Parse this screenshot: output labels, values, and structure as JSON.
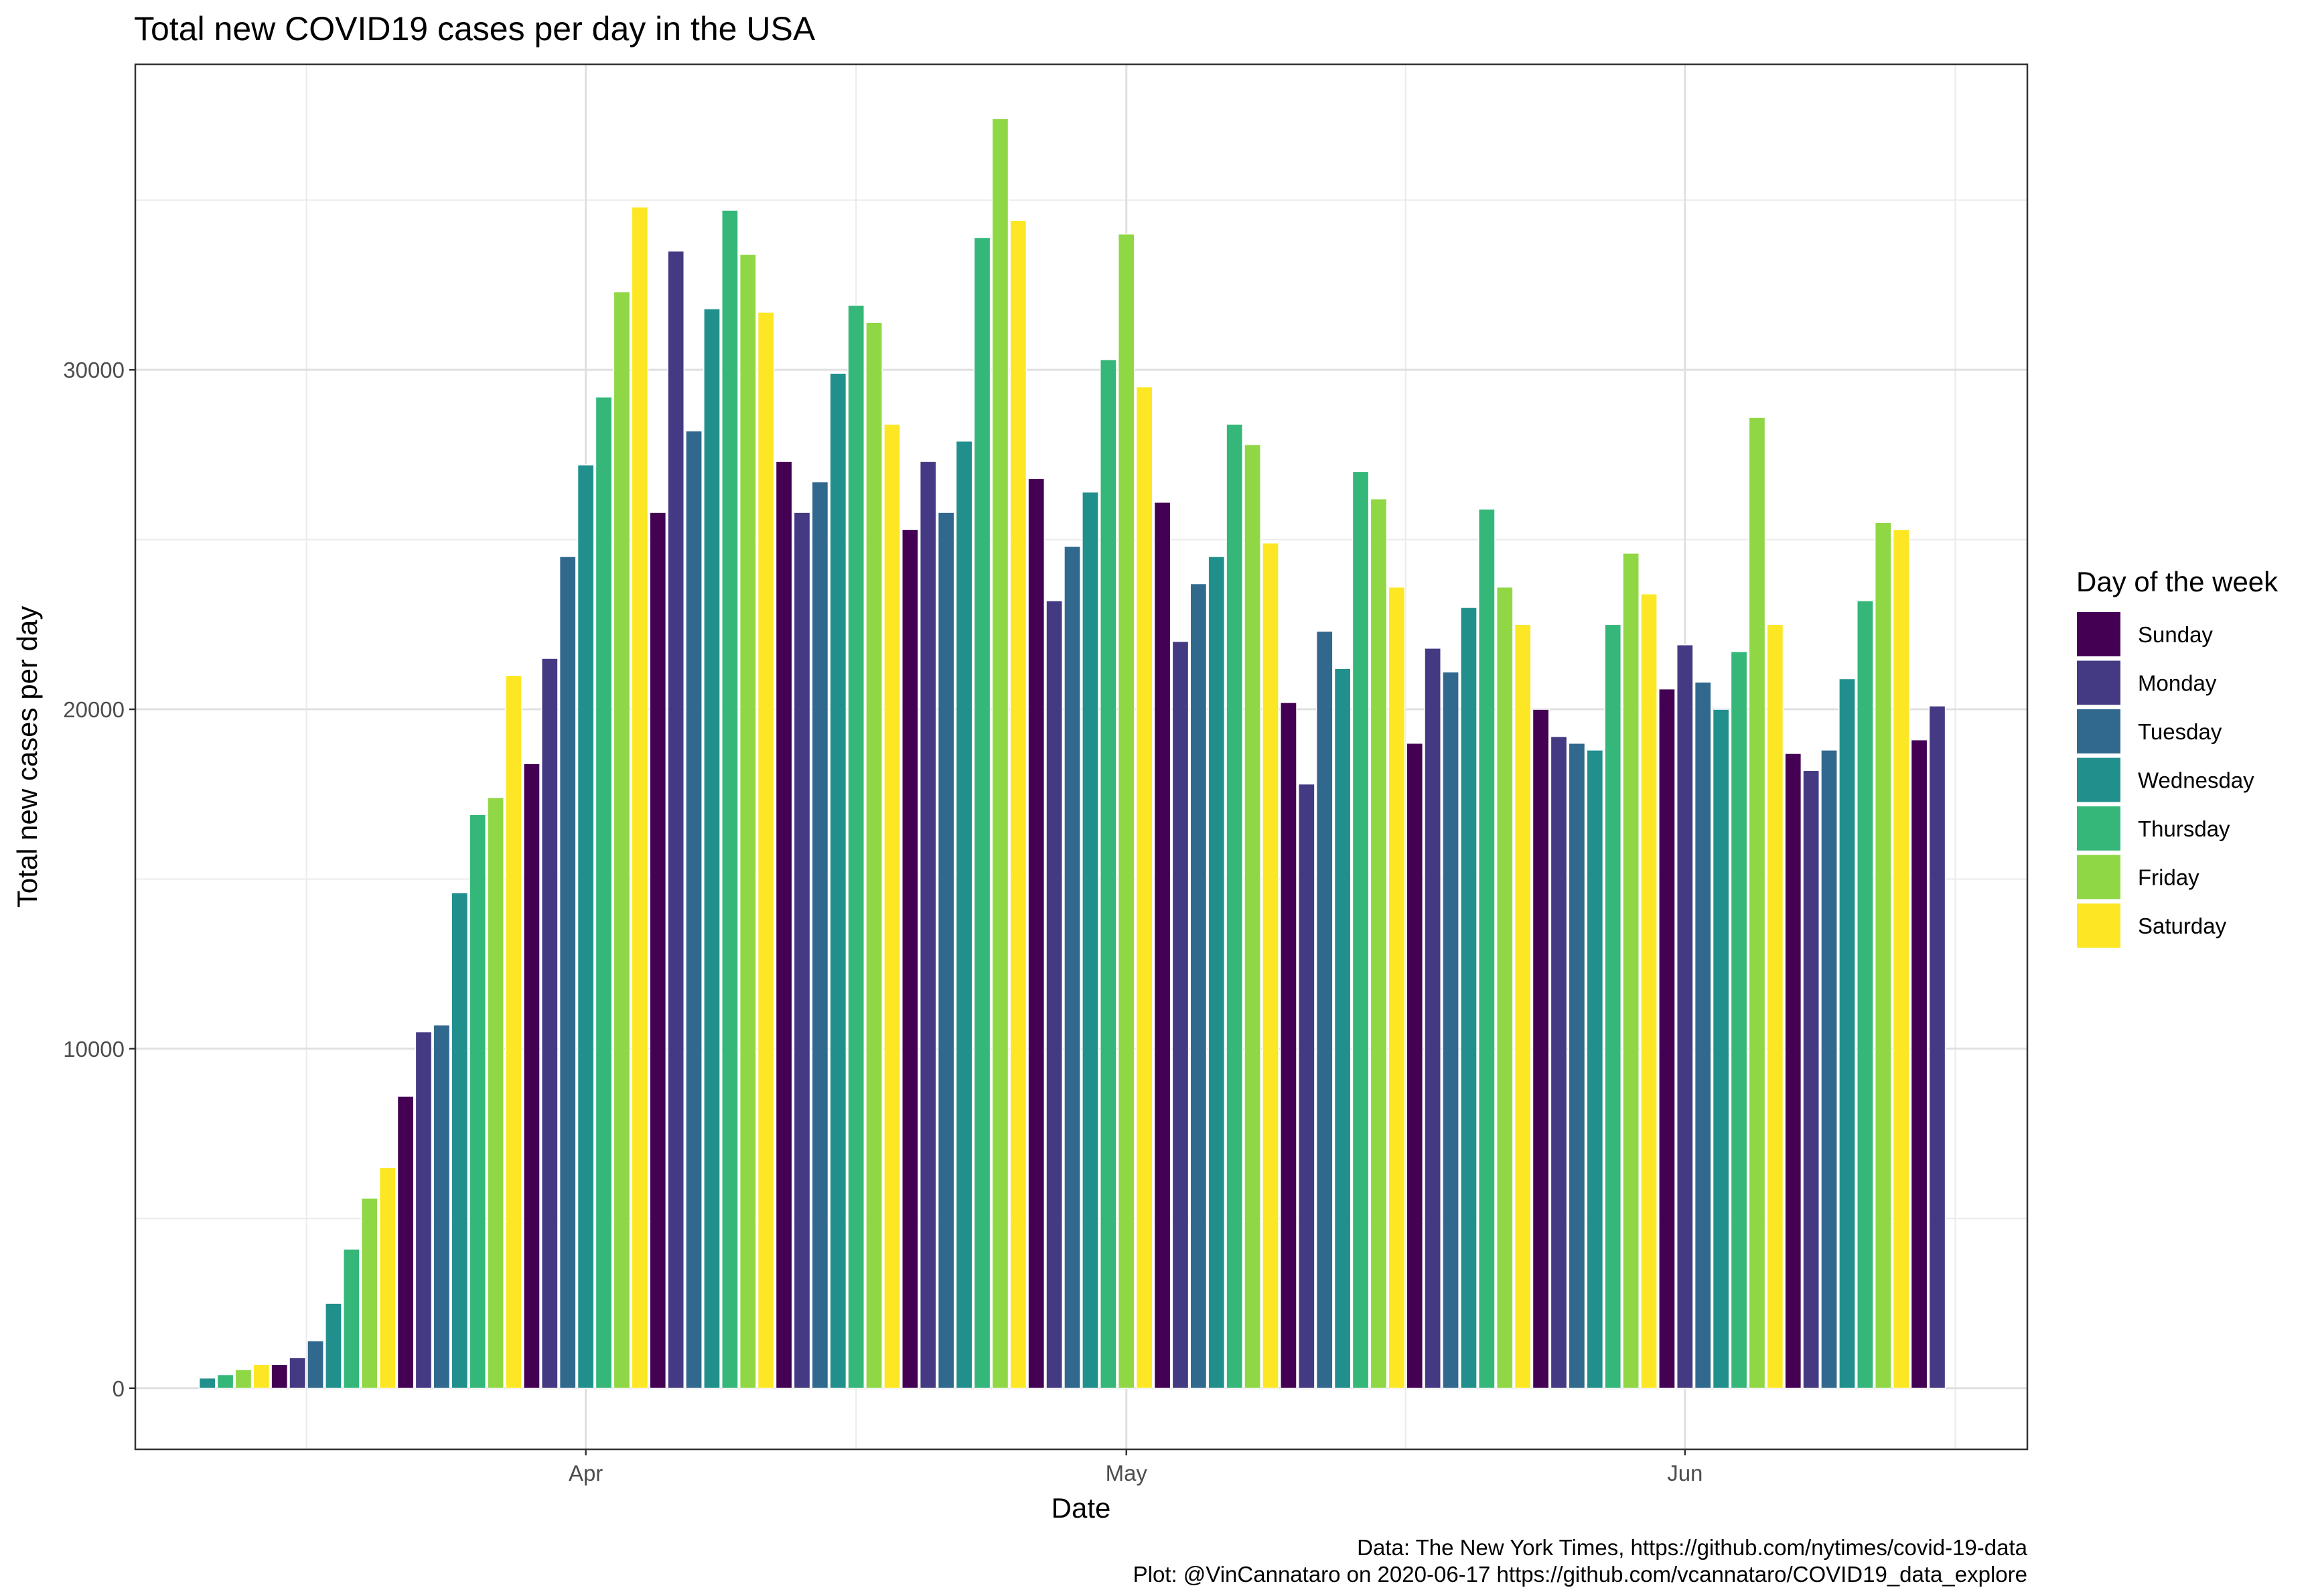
{
  "chart_data": {
    "type": "bar",
    "title": "Total new COVID19 cases per day in the USA",
    "xlabel": "Date",
    "ylabel": "Total new cases per day",
    "ylim": [
      -1800,
      39000
    ],
    "x_tick_labels": [
      "Apr",
      "May",
      "Jun"
    ],
    "y_tick_labels": [
      "0",
      "10000",
      "20000",
      "30000"
    ],
    "y_ticks": [
      0,
      10000,
      20000,
      30000
    ],
    "grid": true,
    "legend": {
      "title": "Day of the week",
      "placement": "right",
      "entries": [
        "Sunday",
        "Monday",
        "Tuesday",
        "Wednesday",
        "Thursday",
        "Friday",
        "Saturday"
      ]
    },
    "colors": {
      "Sunday": "#440154",
      "Monday": "#443A83",
      "Tuesday": "#31688E",
      "Wednesday": "#21908C",
      "Thursday": "#35B779",
      "Friday": "#8FD744",
      "Saturday": "#FDE725"
    },
    "x_start": "2020-03-11",
    "x_range": [
      "2020-03-07",
      "2020-06-20"
    ],
    "days_of_week": [
      "Wednesday",
      "Thursday",
      "Friday",
      "Saturday",
      "Sunday",
      "Monday",
      "Tuesday"
    ],
    "values": [
      300,
      400,
      550,
      700,
      700,
      900,
      1400,
      2500,
      4100,
      5600,
      6500,
      8600,
      10500,
      10700,
      14600,
      16900,
      17400,
      21000,
      18400,
      21500,
      24500,
      27200,
      29200,
      32300,
      34800,
      25800,
      33500,
      28200,
      31800,
      34700,
      33400,
      31700,
      27300,
      25800,
      26700,
      29900,
      31900,
      31400,
      28400,
      25300,
      27300,
      25800,
      27900,
      33900,
      37400,
      34400,
      26800,
      23200,
      24800,
      26400,
      30300,
      34000,
      29500,
      26100,
      22000,
      23700,
      24500,
      28400,
      27800,
      24900,
      20200,
      17800,
      22300,
      21200,
      27000,
      26200,
      23600,
      19000,
      21800,
      21100,
      23000,
      25900,
      23600,
      22500,
      20000,
      19200,
      19000,
      18800,
      22500,
      24600,
      23400,
      20600,
      21900,
      20800,
      20000,
      21700,
      28600,
      22500,
      18700,
      18200,
      18800,
      20900,
      23200,
      25500,
      25300,
      19100,
      20100
    ]
  },
  "caption": {
    "line1": "Data: The New York Times, https://github.com/nytimes/covid-19-data",
    "line2": "Plot: @VinCannataro on 2020-06-17 https://github.com/vcannataro/COVID19_data_explore"
  }
}
